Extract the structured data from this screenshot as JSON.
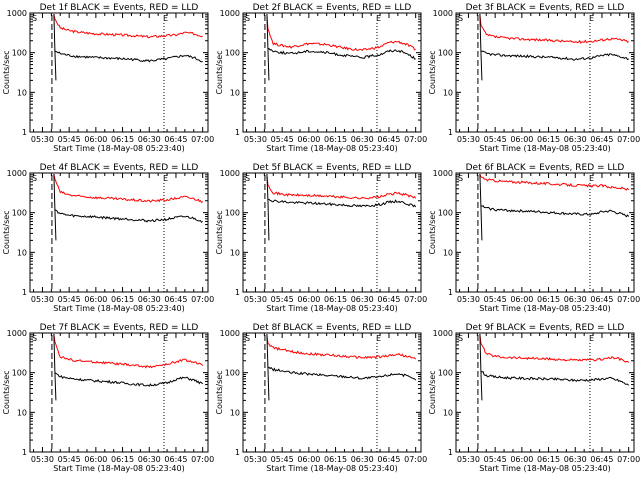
{
  "colors": {
    "events": "#000000",
    "lld": "#ff0000",
    "background": "#ffffff",
    "axes": "#000000"
  },
  "chart_data": [
    {
      "type": "line",
      "title": "Det 1f BLACK = Events, RED = LLD",
      "xlabel": "Start Time (18-May-08 05:23:40)",
      "ylabel": "Counts/sec",
      "y_scale": "log",
      "ylim": [
        1,
        1000
      ],
      "y_tick_labels": [
        "1",
        "10",
        "100",
        "1000"
      ],
      "x_tick_labels": [
        "05:30",
        "05:45",
        "06:00",
        "06:15",
        "06:30",
        "06:45",
        "07:00"
      ],
      "markers": {
        "start_label": "S",
        "end_label": "E"
      },
      "series": [
        {
          "x": [
            "05:37",
            "05:40",
            "05:45",
            "05:50",
            "06:00",
            "06:10",
            "06:20",
            "06:30",
            "06:40",
            "06:45",
            "06:50",
            "06:55",
            "07:00"
          ],
          "y": [
            700,
            420,
            360,
            330,
            300,
            285,
            270,
            250,
            270,
            280,
            320,
            300,
            260
          ]
        },
        {
          "x": [
            "05:37",
            "05:40",
            "05:45",
            "05:50",
            "06:00",
            "06:10",
            "06:20",
            "06:30",
            "06:40",
            "06:45",
            "06:50",
            "06:55",
            "07:00"
          ],
          "y": [
            110,
            95,
            85,
            80,
            75,
            72,
            68,
            62,
            70,
            78,
            85,
            75,
            60
          ]
        }
      ]
    },
    {
      "type": "line",
      "title": "Det 2f BLACK = Events, RED = LLD",
      "xlabel": "Start Time (18-May-08 05:23:40)",
      "ylabel": "Counts/sec",
      "y_scale": "log",
      "ylim": [
        1,
        1000
      ],
      "y_tick_labels": [
        "1",
        "10",
        "100",
        "1000"
      ],
      "x_tick_labels": [
        "05:30",
        "05:45",
        "06:00",
        "06:15",
        "06:30",
        "06:45",
        "07:00"
      ],
      "markers": {
        "start_label": "S",
        "end_label": "E"
      },
      "series": [
        {
          "x": [
            "05:37",
            "05:40",
            "05:45",
            "05:50",
            "06:00",
            "06:10",
            "06:20",
            "06:30",
            "06:40",
            "06:45",
            "06:50",
            "06:55",
            "07:00"
          ],
          "y": [
            400,
            170,
            150,
            140,
            170,
            160,
            130,
            115,
            140,
            180,
            190,
            160,
            120
          ]
        },
        {
          "x": [
            "05:37",
            "05:40",
            "05:45",
            "05:50",
            "06:00",
            "06:10",
            "06:20",
            "06:30",
            "06:40",
            "06:45",
            "06:50",
            "06:55",
            "07:00"
          ],
          "y": [
            130,
            110,
            100,
            95,
            110,
            100,
            85,
            75,
            90,
            110,
            115,
            95,
            70
          ]
        }
      ]
    },
    {
      "type": "line",
      "title": "Det 3f BLACK = Events, RED = LLD",
      "xlabel": "Start Time (18-May-08 05:23:40)",
      "ylabel": "Counts/sec",
      "y_scale": "log",
      "ylim": [
        1,
        1000
      ],
      "y_tick_labels": [
        "1",
        "10",
        "100",
        "1000"
      ],
      "x_tick_labels": [
        "05:30",
        "05:45",
        "06:00",
        "06:15",
        "06:30",
        "06:45",
        "07:00"
      ],
      "markers": {
        "start_label": "S",
        "end_label": "E"
      },
      "series": [
        {
          "x": [
            "05:37",
            "05:40",
            "05:45",
            "05:50",
            "06:00",
            "06:10",
            "06:20",
            "06:30",
            "06:40",
            "06:45",
            "06:50",
            "06:55",
            "07:00"
          ],
          "y": [
            500,
            280,
            250,
            235,
            220,
            210,
            200,
            185,
            195,
            210,
            225,
            215,
            190
          ]
        },
        {
          "x": [
            "05:37",
            "05:40",
            "05:45",
            "05:50",
            "06:00",
            "06:10",
            "06:20",
            "06:30",
            "06:40",
            "06:45",
            "06:50",
            "06:55",
            "07:00"
          ],
          "y": [
            110,
            95,
            88,
            85,
            82,
            78,
            75,
            68,
            75,
            85,
            90,
            80,
            70
          ]
        }
      ]
    },
    {
      "type": "line",
      "title": "Det 4f BLACK = Events, RED = LLD",
      "xlabel": "Start Time (18-May-08 05:23:40)",
      "ylabel": "Counts/sec",
      "y_scale": "log",
      "ylim": [
        1,
        1000
      ],
      "y_tick_labels": [
        "1",
        "10",
        "100",
        "1000"
      ],
      "x_tick_labels": [
        "05:30",
        "05:45",
        "06:00",
        "06:15",
        "06:30",
        "06:45",
        "07:00"
      ],
      "markers": {
        "start_label": "S",
        "end_label": "E"
      },
      "series": [
        {
          "x": [
            "05:37",
            "05:40",
            "05:45",
            "05:50",
            "06:00",
            "06:10",
            "06:20",
            "06:30",
            "06:40",
            "06:45",
            "06:50",
            "06:55",
            "07:00"
          ],
          "y": [
            700,
            330,
            280,
            260,
            240,
            225,
            210,
            195,
            210,
            230,
            250,
            225,
            190
          ]
        },
        {
          "x": [
            "05:37",
            "05:40",
            "05:45",
            "05:50",
            "06:00",
            "06:10",
            "06:20",
            "06:30",
            "06:40",
            "06:45",
            "06:50",
            "06:55",
            "07:00"
          ],
          "y": [
            120,
            95,
            85,
            82,
            78,
            72,
            68,
            62,
            68,
            75,
            80,
            72,
            60
          ]
        }
      ]
    },
    {
      "type": "line",
      "title": "Det 5f BLACK = Events, RED = LLD",
      "xlabel": "Start Time (18-May-08 05:23:40)",
      "ylabel": "Counts/sec",
      "y_scale": "log",
      "ylim": [
        1,
        1000
      ],
      "y_tick_labels": [
        "1",
        "10",
        "100",
        "1000"
      ],
      "x_tick_labels": [
        "05:30",
        "05:45",
        "06:00",
        "06:15",
        "06:30",
        "06:45",
        "07:00"
      ],
      "markers": {
        "start_label": "S",
        "end_label": "E"
      },
      "series": [
        {
          "x": [
            "05:37",
            "05:40",
            "05:45",
            "05:50",
            "06:00",
            "06:10",
            "06:20",
            "06:30",
            "06:40",
            "06:45",
            "06:50",
            "06:55",
            "07:00"
          ],
          "y": [
            500,
            320,
            290,
            280,
            270,
            260,
            245,
            230,
            250,
            290,
            310,
            280,
            230
          ]
        },
        {
          "x": [
            "05:37",
            "05:40",
            "05:45",
            "05:50",
            "06:00",
            "06:10",
            "06:20",
            "06:30",
            "06:40",
            "06:45",
            "06:50",
            "06:55",
            "07:00"
          ],
          "y": [
            220,
            200,
            190,
            180,
            175,
            165,
            155,
            145,
            160,
            185,
            195,
            170,
            140
          ]
        }
      ]
    },
    {
      "type": "line",
      "title": "Det 6f BLACK = Events, RED = LLD",
      "xlabel": "Start Time (18-May-08 05:23:40)",
      "ylabel": "Counts/sec",
      "y_scale": "log",
      "ylim": [
        1,
        1000
      ],
      "y_tick_labels": [
        "1",
        "10",
        "100",
        "1000"
      ],
      "x_tick_labels": [
        "05:30",
        "05:45",
        "06:00",
        "06:15",
        "06:30",
        "06:45",
        "07:00"
      ],
      "markers": {
        "start_label": "S",
        "end_label": "E"
      },
      "series": [
        {
          "x": [
            "05:37",
            "05:40",
            "05:45",
            "05:50",
            "06:00",
            "06:10",
            "06:20",
            "06:30",
            "06:40",
            "06:45",
            "06:50",
            "06:55",
            "07:00"
          ],
          "y": [
            800,
            680,
            640,
            610,
            580,
            550,
            520,
            490,
            470,
            480,
            440,
            420,
            380
          ]
        },
        {
          "x": [
            "05:37",
            "05:40",
            "05:45",
            "05:50",
            "06:00",
            "06:10",
            "06:20",
            "06:30",
            "06:40",
            "06:45",
            "06:50",
            "06:55",
            "07:00"
          ],
          "y": [
            150,
            130,
            120,
            115,
            110,
            105,
            98,
            92,
            90,
            105,
            110,
            95,
            80
          ]
        }
      ]
    },
    {
      "type": "line",
      "title": "Det 7f BLACK = Events, RED = LLD",
      "xlabel": "Start Time (18-May-08 05:23:40)",
      "ylabel": "Counts/sec",
      "y_scale": "log",
      "ylim": [
        1,
        1000
      ],
      "y_tick_labels": [
        "1",
        "10",
        "100",
        "1000"
      ],
      "x_tick_labels": [
        "05:30",
        "05:45",
        "06:00",
        "06:15",
        "06:30",
        "06:45",
        "07:00"
      ],
      "markers": {
        "start_label": "S",
        "end_label": "E"
      },
      "series": [
        {
          "x": [
            "05:37",
            "05:40",
            "05:45",
            "05:50",
            "06:00",
            "06:10",
            "06:20",
            "06:30",
            "06:40",
            "06:45",
            "06:50",
            "06:55",
            "07:00"
          ],
          "y": [
            600,
            250,
            215,
            200,
            185,
            170,
            155,
            140,
            160,
            190,
            210,
            185,
            150
          ]
        },
        {
          "x": [
            "05:37",
            "05:40",
            "05:45",
            "05:50",
            "06:00",
            "06:10",
            "06:20",
            "06:30",
            "06:40",
            "06:45",
            "06:50",
            "06:55",
            "07:00"
          ],
          "y": [
            100,
            80,
            72,
            68,
            62,
            58,
            52,
            48,
            55,
            68,
            75,
            65,
            52
          ]
        }
      ]
    },
    {
      "type": "line",
      "title": "Det 8f BLACK = Events, RED = LLD",
      "xlabel": "Start Time (18-May-08 05:23:40)",
      "ylabel": "Counts/sec",
      "y_scale": "log",
      "ylim": [
        1,
        1000
      ],
      "y_tick_labels": [
        "1",
        "10",
        "100",
        "1000"
      ],
      "x_tick_labels": [
        "05:30",
        "05:45",
        "06:00",
        "06:15",
        "06:30",
        "06:45",
        "07:00"
      ],
      "markers": {
        "start_label": "S",
        "end_label": "E"
      },
      "series": [
        {
          "x": [
            "05:37",
            "05:40",
            "05:45",
            "05:50",
            "06:00",
            "06:10",
            "06:20",
            "06:30",
            "06:40",
            "06:45",
            "06:50",
            "06:55",
            "07:00"
          ],
          "y": [
            550,
            420,
            380,
            340,
            300,
            280,
            260,
            240,
            250,
            270,
            290,
            260,
            220
          ]
        },
        {
          "x": [
            "05:37",
            "05:40",
            "05:45",
            "05:50",
            "06:00",
            "06:10",
            "06:20",
            "06:30",
            "06:40",
            "06:45",
            "06:50",
            "06:55",
            "07:00"
          ],
          "y": [
            140,
            120,
            110,
            100,
            92,
            85,
            80,
            72,
            78,
            88,
            95,
            82,
            65
          ]
        }
      ]
    },
    {
      "type": "line",
      "title": "Det 9f BLACK = Events, RED = LLD",
      "xlabel": "Start Time (18-May-08 05:23:40)",
      "ylabel": "Counts/sec",
      "y_scale": "log",
      "ylim": [
        1,
        1000
      ],
      "y_tick_labels": [
        "1",
        "10",
        "100",
        "1000"
      ],
      "x_tick_labels": [
        "05:30",
        "05:45",
        "06:00",
        "06:15",
        "06:30",
        "06:45",
        "07:00"
      ],
      "markers": {
        "start_label": "S",
        "end_label": "E"
      },
      "series": [
        {
          "x": [
            "05:37",
            "05:40",
            "05:45",
            "05:50",
            "06:00",
            "06:10",
            "06:20",
            "06:30",
            "06:40",
            "06:45",
            "06:50",
            "06:55",
            "07:00"
          ],
          "y": [
            550,
            300,
            260,
            245,
            235,
            225,
            215,
            205,
            210,
            220,
            240,
            220,
            180
          ]
        },
        {
          "x": [
            "05:37",
            "05:40",
            "05:45",
            "05:50",
            "06:00",
            "06:10",
            "06:20",
            "06:30",
            "06:40",
            "06:45",
            "06:50",
            "06:55",
            "07:00"
          ],
          "y": [
            110,
            85,
            78,
            75,
            72,
            70,
            68,
            64,
            66,
            70,
            72,
            62,
            48
          ]
        }
      ]
    }
  ]
}
